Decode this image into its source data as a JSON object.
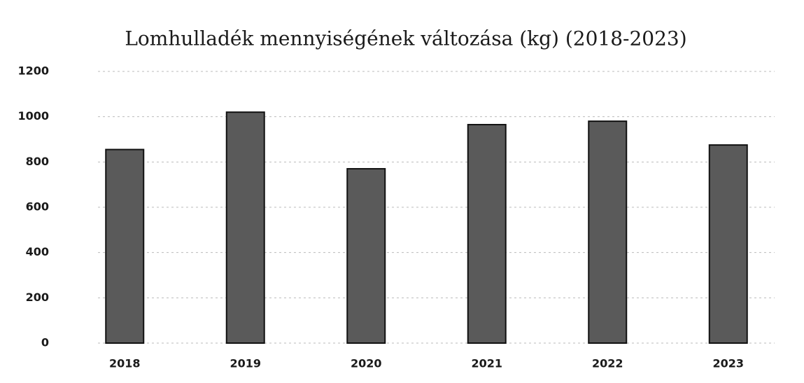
{
  "chart_data": {
    "type": "bar",
    "title": "Lomhulladék mennyiségének változása (kg) (2018-2023)",
    "categories": [
      "2018",
      "2019",
      "2020",
      "2021",
      "2022",
      "2023"
    ],
    "values": [
      855,
      1020,
      770,
      965,
      980,
      875
    ],
    "color": "#5a5a5a",
    "ylim": [
      0,
      1200
    ],
    "yticks": [
      0,
      200,
      400,
      600,
      800,
      1000,
      1200
    ],
    "grid": true
  }
}
